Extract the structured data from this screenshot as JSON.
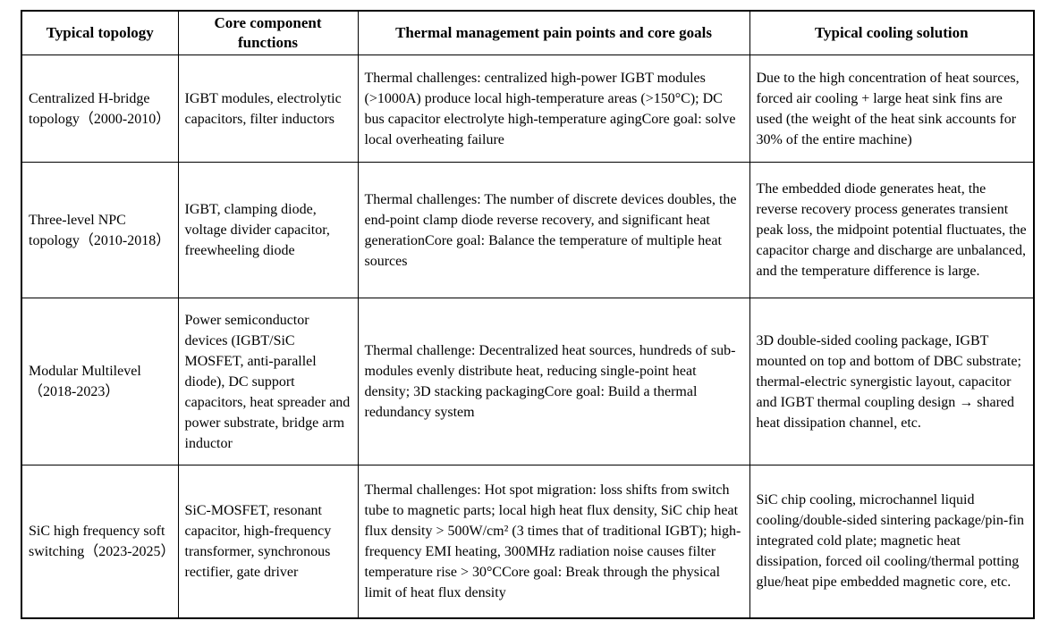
{
  "table": {
    "columns": [
      "Typical topology",
      "Core component functions",
      "Thermal management pain points and core goals",
      "Typical cooling solution"
    ],
    "rows": [
      {
        "topology": "Centralized H-bridge topology（2000-2010）",
        "components": "IGBT modules, electrolytic capacitors, filter inductors",
        "pain_points": "Thermal challenges: centralized high-power IGBT modules (>1000A) produce local high-temperature areas (>150°C); DC bus capacitor electrolyte high-temperature agingCore goal: solve local overheating failure",
        "cooling": "Due to the high concentration of heat sources, forced air cooling + large heat sink fins are used (the weight of the heat sink accounts for 30% of the entire machine)"
      },
      {
        "topology": "Three-level NPC topology（2010-2018）",
        "components": "IGBT, clamping diode, voltage divider capacitor, freewheeling diode",
        "pain_points": "Thermal challenges: The number of discrete devices doubles, the end-point clamp diode reverse recovery, and significant heat generationCore goal: Balance the temperature of multiple heat sources",
        "cooling": "The embedded diode generates heat, the reverse recovery process generates transient peak loss, the midpoint potential fluctuates, the capacitor charge and discharge are unbalanced, and the temperature difference is large."
      },
      {
        "topology": "Modular Multilevel（2018-2023）",
        "components": "Power semiconductor devices (IGBT/SiC MOSFET, anti-parallel diode), DC support capacitors, heat spreader and power substrate, bridge arm inductor",
        "pain_points": "Thermal challenge: Decentralized heat sources, hundreds of sub-modules evenly distribute heat, reducing single-point heat density; 3D stacking packagingCore goal: Build a thermal redundancy system",
        "cooling": "3D double-sided cooling package, IGBT mounted on top and bottom of DBC substrate; thermal-electric synergistic layout, capacitor and IGBT thermal coupling design → shared heat dissipation channel, etc."
      },
      {
        "topology": "SiC high frequency soft switching（2023-2025）",
        "components": "SiC-MOSFET, resonant capacitor, high-frequency transformer, synchronous rectifier, gate driver",
        "pain_points": "Thermal challenges: Hot spot migration: loss shifts from switch tube to magnetic parts; local high heat flux density, SiC chip heat flux density > 500W/cm² (3 times that of traditional IGBT); high-frequency EMI heating, 300MHz radiation noise causes filter temperature rise > 30°CCore goal: Break through the physical limit of heat flux density",
        "cooling": "SiC chip cooling, microchannel liquid cooling/double-sided sintering package/pin-fin integrated cold plate; magnetic heat dissipation, forced oil cooling/thermal potting glue/heat pipe embedded magnetic core, etc."
      }
    ]
  }
}
